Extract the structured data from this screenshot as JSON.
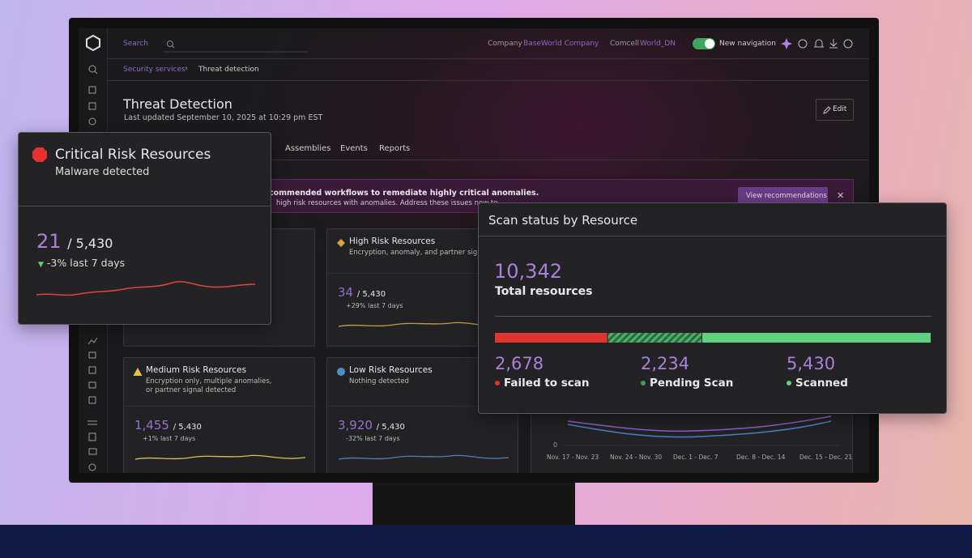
{
  "top_bar": {
    "search": "Search",
    "company_label": "Company",
    "company": "BaseWorld Company",
    "env_label": "Comcell",
    "env": "World_DN",
    "toggle_label": "New navigation"
  },
  "breadcrumb": [
    "Security services",
    "Threat detection"
  ],
  "header": {
    "title": "Threat Detection",
    "updated": "Last updated September 10, 2025 at 10:29 pm EST",
    "edit": "Edit"
  },
  "tabs": [
    "Assemblies",
    "Events",
    "Reports"
  ],
  "banner": {
    "title": "commended workflows to remediate highly critical anomalies.",
    "text": "high risk resources with anomalies. Address these issues now to",
    "button": "View recommendations"
  },
  "cards": [
    {
      "title": "High Risk Resources",
      "description": [
        "Encryption, anomaly, and partner signal d"
      ],
      "value": "34",
      "total": "/ 5,430",
      "change": "+29% last 7 days"
    },
    {
      "title": "Medium Risk Resources",
      "description": [
        "Encryption only, multiple anomalies,",
        "or partner signal detected"
      ],
      "value": "1,455",
      "total": "/ 5,430",
      "change": "+1% last 7 days"
    },
    {
      "title": "Low Risk Resources",
      "description": [
        "Nothing detected"
      ],
      "value": "3,920",
      "total": "/ 5,430",
      "change": "-32% last 7 days"
    }
  ],
  "trend_chart": {
    "ytick": "0",
    "x": [
      "Nov. 17 - Nov. 23",
      "Nov. 24 - Nov. 30",
      "Dec. 1 - Dec. 7",
      "Dec. 8 - Dec. 14",
      "Dec. 15 - Dec. 21"
    ]
  },
  "critical_card": {
    "title": "Critical Risk Resources",
    "subtitle": "Malware detected",
    "value": "21",
    "total": "/ 5,430",
    "change": "-3% last 7 days"
  },
  "scan_card": {
    "title": "Scan status by Resource",
    "total": "10,342",
    "total_label": "Total resources",
    "segments": [
      {
        "value": "2,678",
        "label": "Failed to scan",
        "color": "#e0362f"
      },
      {
        "value": "2,234",
        "label": "Pending Scan",
        "color": "#3f9a5c"
      },
      {
        "value": "5,430",
        "label": "Scanned",
        "color": "#5fcf80"
      }
    ]
  }
}
